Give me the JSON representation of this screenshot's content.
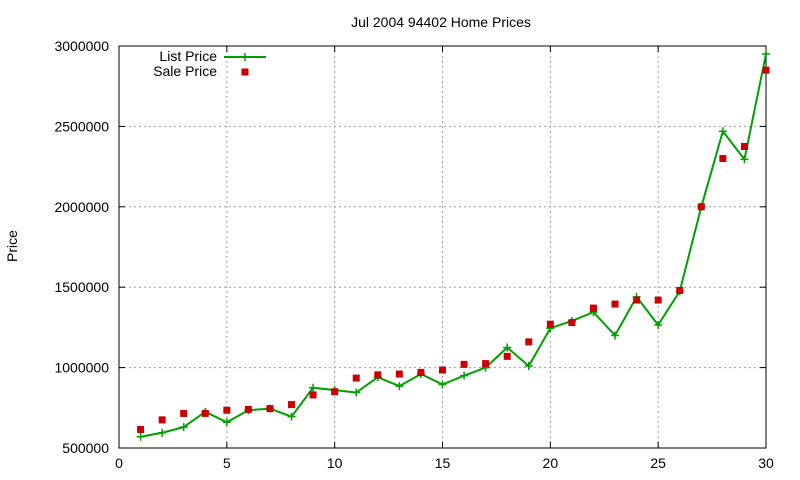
{
  "chart_data": {
    "type": "line",
    "title": "Jul 2004 94402 Home Prices",
    "xlabel": "",
    "ylabel": "Price",
    "xlim": [
      0,
      30
    ],
    "ylim": [
      500000,
      3000000
    ],
    "xticks": [
      0,
      5,
      10,
      15,
      20,
      25,
      30
    ],
    "yticks": [
      500000,
      1000000,
      1500000,
      2000000,
      2500000,
      3000000
    ],
    "xtick_labels": [
      "0",
      "5",
      "10",
      "15",
      "20",
      "25",
      "30"
    ],
    "ytick_labels": [
      "500000",
      "1000000",
      "1500000",
      "2000000",
      "2500000",
      "3000000"
    ],
    "grid": true,
    "legend_position": "top-left",
    "series": [
      {
        "name": "List Price",
        "style": "linespoints",
        "marker": "plus",
        "color": "#00a000",
        "x": [
          1,
          2,
          3,
          4,
          5,
          6,
          7,
          8,
          9,
          10,
          11,
          12,
          13,
          14,
          15,
          16,
          17,
          18,
          19,
          20,
          21,
          22,
          23,
          24,
          25,
          26,
          27,
          28,
          29,
          30
        ],
        "y": [
          570000,
          595000,
          630000,
          725000,
          660000,
          735000,
          745000,
          695000,
          875000,
          860000,
          845000,
          940000,
          885000,
          960000,
          895000,
          950000,
          1000000,
          1125000,
          1010000,
          1245000,
          1290000,
          1345000,
          1200000,
          1440000,
          1265000,
          1475000,
          2000000,
          2470000,
          2295000,
          2950000
        ]
      },
      {
        "name": "Sale Price",
        "style": "points",
        "marker": "square",
        "color": "#cc0000",
        "x": [
          1,
          2,
          3,
          4,
          5,
          6,
          7,
          8,
          9,
          10,
          11,
          12,
          13,
          14,
          15,
          16,
          17,
          18,
          19,
          20,
          21,
          22,
          23,
          24,
          25,
          26,
          27,
          28,
          29,
          30
        ],
        "y": [
          615000,
          675000,
          715000,
          715000,
          735000,
          740000,
          745000,
          770000,
          830000,
          850000,
          935000,
          955000,
          960000,
          970000,
          985000,
          1020000,
          1025000,
          1070000,
          1160000,
          1270000,
          1280000,
          1370000,
          1395000,
          1420000,
          1420000,
          1480000,
          2000000,
          2300000,
          2375000,
          2850000
        ]
      }
    ]
  }
}
